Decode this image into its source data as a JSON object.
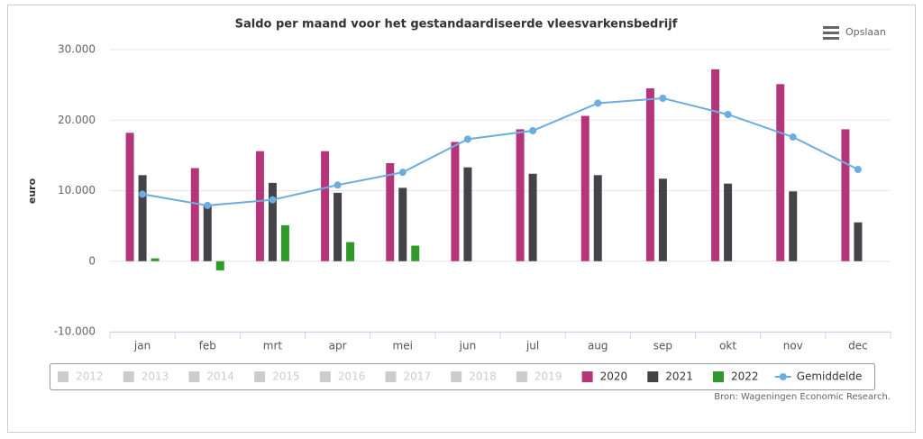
{
  "chart_data": {
    "type": "bar",
    "title": "Saldo per maand voor het gestandaardiseerde vleesvarkensbedrijf",
    "y_label": "euro",
    "source": "Bron: Wageningen Economic Research.",
    "save_button": "Opslaan",
    "categories": [
      "jan",
      "feb",
      "mrt",
      "apr",
      "mei",
      "jun",
      "jul",
      "aug",
      "sep",
      "okt",
      "nov",
      "dec"
    ],
    "ylim": [
      -10000,
      30000
    ],
    "yticks": [
      {
        "value": -10000,
        "label": "-10.000"
      },
      0,
      {
        "value": 10000,
        "label": "10.000"
      },
      {
        "value": 20000,
        "label": "20.000"
      },
      {
        "value": 30000,
        "label": "30.000"
      }
    ],
    "grid": true,
    "series": [
      {
        "name": "2012",
        "color": "#cccccc",
        "visible": false
      },
      {
        "name": "2013",
        "color": "#cccccc",
        "visible": false
      },
      {
        "name": "2014",
        "color": "#cccccc",
        "visible": false
      },
      {
        "name": "2015",
        "color": "#cccccc",
        "visible": false
      },
      {
        "name": "2016",
        "color": "#cccccc",
        "visible": false
      },
      {
        "name": "2017",
        "color": "#cccccc",
        "visible": false
      },
      {
        "name": "2018",
        "color": "#cccccc",
        "visible": false
      },
      {
        "name": "2019",
        "color": "#cccccc",
        "visible": false
      },
      {
        "name": "2020",
        "color": "#b5357a",
        "type": "bar",
        "values": [
          18200,
          13200,
          15600,
          15600,
          13900,
          16900,
          18700,
          20600,
          24500,
          27200,
          25100,
          18700
        ]
      },
      {
        "name": "2021",
        "color": "#434348",
        "type": "bar",
        "values": [
          12200,
          7900,
          11100,
          9700,
          10400,
          13300,
          12400,
          12200,
          11700,
          11000,
          9900,
          5500
        ]
      },
      {
        "name": "2022",
        "color": "#2f9a2a",
        "type": "bar",
        "values": [
          400,
          -1300,
          5100,
          2700,
          2200,
          null,
          null,
          null,
          null,
          null,
          null,
          null
        ]
      },
      {
        "name": "Gemiddelde",
        "color": "#6caddf",
        "type": "line",
        "values": [
          9500,
          7900,
          8700,
          10800,
          12600,
          17300,
          18500,
          22400,
          23100,
          20800,
          17600,
          13000
        ]
      }
    ]
  }
}
